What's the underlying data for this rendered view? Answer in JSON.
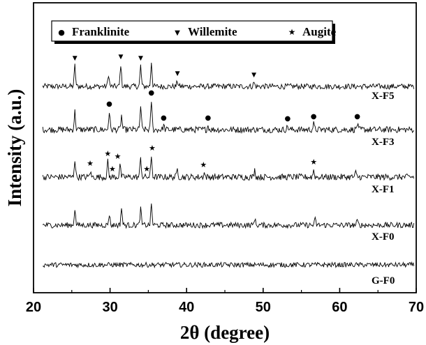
{
  "chart_data": {
    "type": "line",
    "xlabel": "2θ  (degree)",
    "ylabel": "Intensity (a.u.)",
    "xlim": [
      20,
      70
    ],
    "xticks": [
      20,
      30,
      40,
      50,
      60,
      70
    ],
    "grid": false,
    "legend_position": "top-left",
    "legend": [
      {
        "name": "Franklinite",
        "marker": "●"
      },
      {
        "name": "Willemite",
        "marker": "▼"
      },
      {
        "name": "Augite",
        "marker": "★"
      }
    ],
    "series": [
      {
        "name": "X-F5",
        "peaks": [
          [
            25.4,
            30
          ],
          [
            29.8,
            18
          ],
          [
            31.4,
            32
          ],
          [
            34.0,
            30
          ],
          [
            35.4,
            36
          ],
          [
            38.8,
            8
          ],
          [
            48.8,
            6
          ]
        ]
      },
      {
        "name": "X-F3",
        "peaks": [
          [
            25.4,
            26
          ],
          [
            29.9,
            26
          ],
          [
            31.5,
            20
          ],
          [
            34.0,
            34
          ],
          [
            35.4,
            42
          ],
          [
            37.0,
            6
          ],
          [
            42.8,
            6
          ],
          [
            53.2,
            5
          ],
          [
            56.6,
            8
          ],
          [
            62.3,
            8
          ]
        ]
      },
      {
        "name": "X-F1",
        "peaks": [
          [
            25.4,
            26
          ],
          [
            27.4,
            8
          ],
          [
            29.7,
            22
          ],
          [
            31.3,
            18
          ],
          [
            34.0,
            28
          ],
          [
            35.4,
            30
          ],
          [
            38.8,
            12
          ],
          [
            42.3,
            6
          ],
          [
            48.9,
            10
          ],
          [
            56.6,
            10
          ],
          [
            62.1,
            6
          ]
        ]
      },
      {
        "name": "X-F0",
        "peaks": [
          [
            25.4,
            24
          ],
          [
            29.9,
            16
          ],
          [
            31.5,
            26
          ],
          [
            34.0,
            24
          ],
          [
            35.4,
            30
          ],
          [
            48.9,
            10
          ],
          [
            56.8,
            8
          ],
          [
            62.3,
            6
          ]
        ]
      },
      {
        "name": "G-F0",
        "peaks": []
      }
    ],
    "phase_markers": [
      {
        "phase": "Willemite",
        "symbol": "▼",
        "series": "X-F5",
        "x": [
          25.4,
          31.4,
          34.0,
          38.8,
          48.8
        ]
      },
      {
        "phase": "Franklinite",
        "symbol": "●",
        "series": "X-F3",
        "x": [
          29.9,
          35.4,
          37.0,
          42.8,
          53.2,
          56.6,
          62.3
        ]
      },
      {
        "phase": "Augite",
        "symbol": "★",
        "series": "X-F1",
        "x": [
          27.4,
          29.7,
          30.3,
          31.0,
          34.8,
          35.5,
          42.2,
          56.6
        ]
      }
    ]
  }
}
